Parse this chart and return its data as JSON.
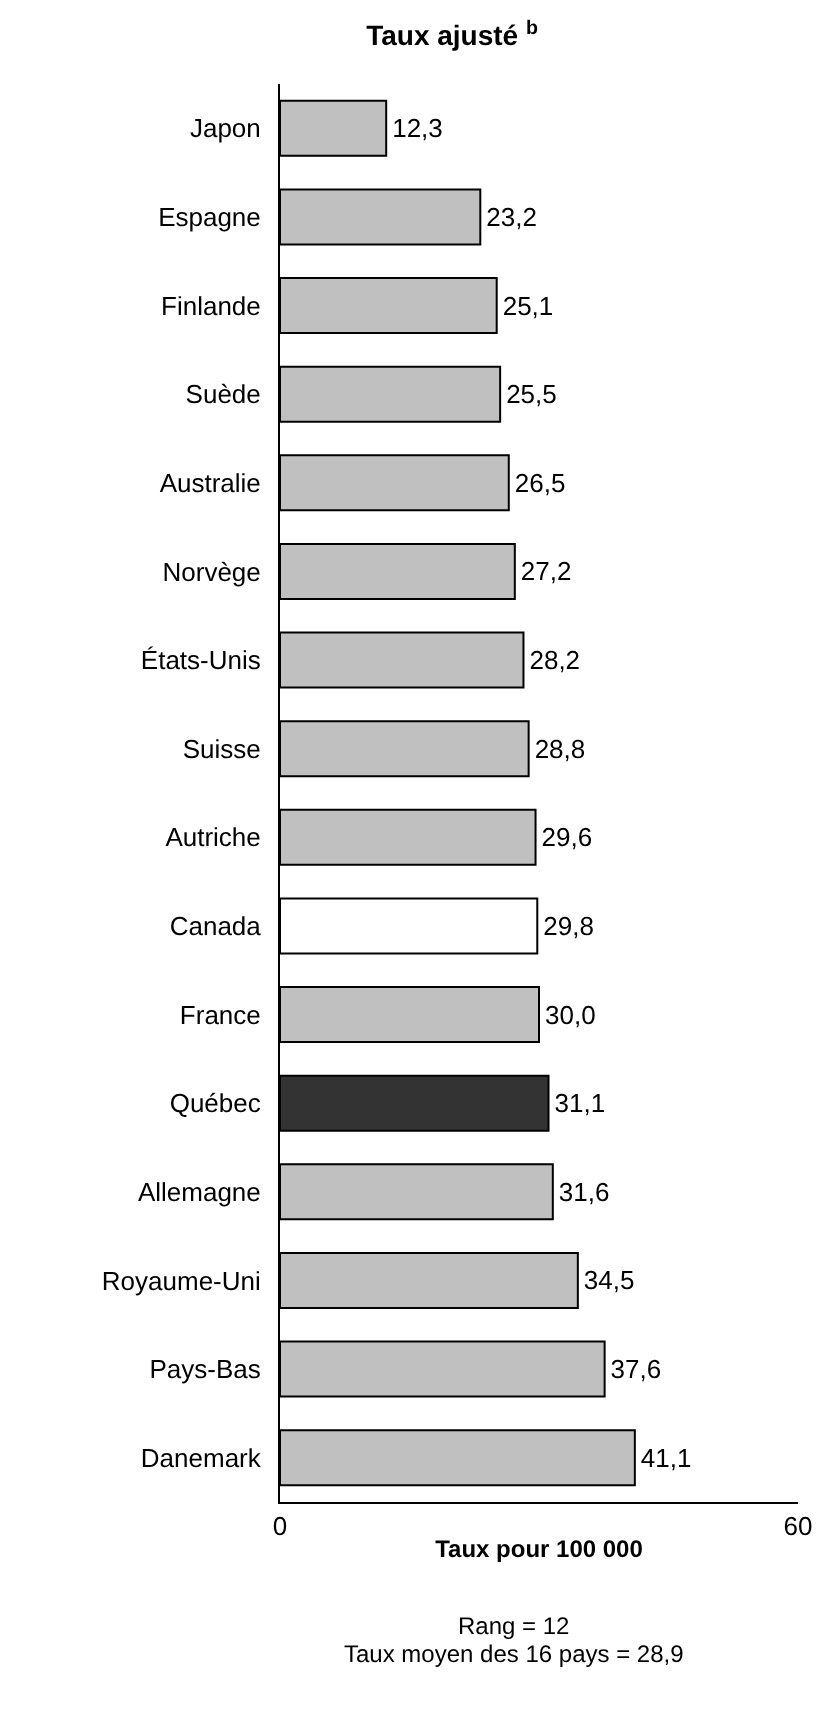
{
  "chart_data": {
    "type": "bar",
    "orientation": "horizontal",
    "title": "Taux ajusté $^{b}$",
    "xlabel": "Taux pour 100 000",
    "categories": [
      "Japon",
      "Espagne",
      "Finlande",
      "Suède",
      "Australie",
      "Norvège",
      "États-Unis",
      "Suisse",
      "Autriche",
      "Canada",
      "France",
      "Québec",
      "Allemagne",
      "Royaume-Uni",
      "Pays-Bas",
      "Danemark"
    ],
    "values": [
      12.3,
      23.2,
      25.1,
      25.5,
      26.5,
      27.2,
      28.2,
      28.8,
      29.6,
      29.8,
      30.0,
      31.1,
      31.6,
      34.5,
      37.6,
      41.1
    ],
    "value_labels": [
      "12,3",
      "23,2",
      "25,1",
      "25,5",
      "26,5",
      "27,2",
      "28,2",
      "28,8",
      "29,6",
      "29,8",
      "30,0",
      "31,1",
      "31,6",
      "34,5",
      "37,6",
      "41,1"
    ],
    "colors": [
      "#c0c0c0",
      "#c0c0c0",
      "#c0c0c0",
      "#c0c0c0",
      "#c0c0c0",
      "#c0c0c0",
      "#c0c0c0",
      "#c0c0c0",
      "#c0c0c0",
      "#ffffff",
      "#c0c0c0",
      "#333333",
      "#c0c0c0",
      "#c0c0c0",
      "#c0c0c0",
      "#c0c0c0"
    ],
    "xlim": [
      0,
      60
    ],
    "xticks": [
      0,
      60
    ],
    "annotations": [
      "Rang = 12",
      "Taux moyen des 16 pays = 28,9"
    ]
  }
}
